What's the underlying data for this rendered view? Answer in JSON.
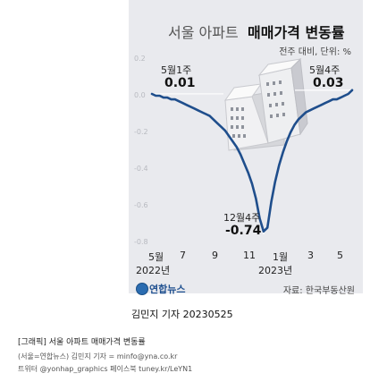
{
  "header": {
    "title_regular": "서울 아파트",
    "title_bold": "매매가격 변동률",
    "subtitle": "전주 대비, 단위: %"
  },
  "chart_data": {
    "type": "line",
    "title": "서울 아파트 매매가격 변동률",
    "subtitle": "전주 대비, 단위: %",
    "y_ticks": [
      "0.2",
      "0.0",
      "-0.2",
      "-0.4",
      "-0.6",
      "-0.8"
    ],
    "ylim": [
      -0.8,
      0.2
    ],
    "x_ticks": [
      "5월",
      "7",
      "9",
      "11",
      "1월",
      "3",
      "5"
    ],
    "x_year_labels": [
      "2022년",
      "2023년"
    ],
    "grid": false,
    "series": [
      {
        "values": [
          0.01,
          0.0,
          0.0,
          -0.01,
          -0.01,
          -0.02,
          -0.02,
          -0.03,
          -0.04,
          -0.05,
          -0.06,
          -0.07,
          -0.08,
          -0.09,
          -0.1,
          -0.11,
          -0.13,
          -0.15,
          -0.17,
          -0.19,
          -0.22,
          -0.25,
          -0.28,
          -0.32,
          -0.37,
          -0.42,
          -0.48,
          -0.56,
          -0.67,
          -0.74,
          -0.72,
          -0.58,
          -0.47,
          -0.38,
          -0.31,
          -0.25,
          -0.2,
          -0.16,
          -0.13,
          -0.11,
          -0.09,
          -0.08,
          -0.07,
          -0.06,
          -0.05,
          -0.04,
          -0.03,
          -0.02,
          -0.02,
          -0.01,
          0.0,
          0.01,
          0.03
        ]
      }
    ],
    "annotations": [
      {
        "date": "5월1주",
        "value": "0.01"
      },
      {
        "date": "12월4주",
        "value": "-0.74"
      },
      {
        "date": "5월4주",
        "value": "0.03"
      }
    ],
    "colors": {
      "line": "#1f4e8c",
      "leader": "#ffffff",
      "background": "#e9eaee"
    }
  },
  "logo": {
    "text": "연합뉴스"
  },
  "source": "자료: 한국부동산원",
  "byline": "김민지 기자  20230525",
  "footer": {
    "title": "[그래픽] 서울 아파트 매매가격 변동률",
    "line1": "(서울=연합뉴스) 김민지 기자 = minfo@yna.co.kr",
    "line2": "트위터 @yonhap_graphics 페이스북 tuney.kr/LeYN1"
  }
}
